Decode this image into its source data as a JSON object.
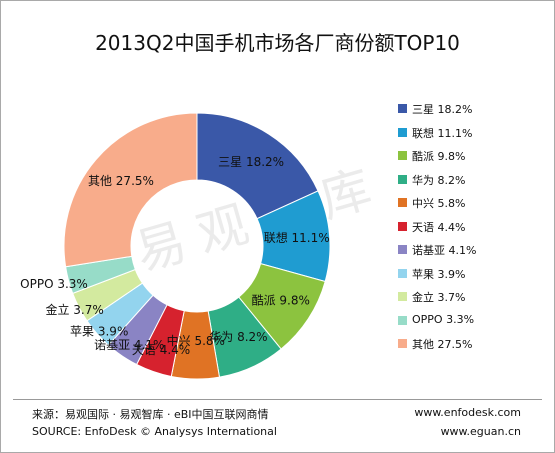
{
  "chart_data": {
    "type": "pie",
    "title": "2013Q2中国手机市场各厂商份额TOP10",
    "categories": [
      "三星",
      "联想",
      "酷派",
      "华为",
      "中兴",
      "天语",
      "诺基亚",
      "苹果",
      "金立",
      "OPPO",
      "其他"
    ],
    "values": [
      18.2,
      11.1,
      9.8,
      8.2,
      5.8,
      4.4,
      4.1,
      3.9,
      3.7,
      3.3,
      27.5
    ],
    "labels": [
      "三星 18.2%",
      "联想 11.1%",
      "酷派 9.8%",
      "华为 8.2%",
      "中兴 5.8%",
      "天语 4.4%",
      "诺基亚 4.1%",
      "苹果 3.9%",
      "金立 3.7%",
      "OPPO 3.3%",
      "其他 27.5%"
    ],
    "colors": [
      "#3A58A8",
      "#1F9CD1",
      "#8CC33F",
      "#2FAE86",
      "#E07324",
      "#D6222E",
      "#8A84C4",
      "#93D4EE",
      "#D3EA9F",
      "#97DCC8",
      "#F8AC8B"
    ],
    "hole": "donut",
    "start": "top",
    "direction": "clockwise",
    "legend_position": "right"
  },
  "watermark": "易观智库",
  "footer": {
    "source_cn": "来源：易观国际 · 易观智库 · eBI中国互联网商情",
    "source_en": "SOURCE: EnfoDesk © Analysys International",
    "url_1": "www.enfodesk.com",
    "url_2": "www.eguan.cn"
  }
}
